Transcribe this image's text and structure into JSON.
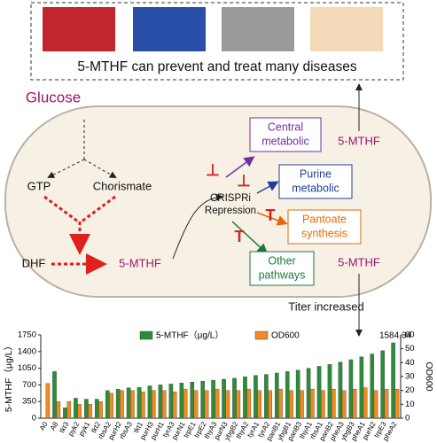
{
  "banner": {
    "caption": "5-MTHF can prevent and treat many diseases"
  },
  "pathway": {
    "glucose": "Glucose",
    "gtp": "GTP",
    "chorismate": "Chorismate",
    "dhf": "DHF",
    "product": "5-MTHF",
    "crispri": [
      "CRISPRi",
      "Repression"
    ],
    "targets": [
      [
        "Central",
        "metabolic"
      ],
      [
        "Purine",
        "metabolic"
      ],
      [
        "Pantoate",
        "synthesis"
      ],
      [
        "Other",
        "pathways"
      ]
    ],
    "export_top": "5-MTHF",
    "export_bottom": "5-MTHF",
    "result": "Titer increased"
  },
  "chart_data": {
    "type": "bar",
    "y_label": "5-MTHF（μg/L）",
    "y2_label": "OD600",
    "categories": [
      "A0",
      "A8",
      "tkt3",
      "pyk2",
      "pyk1",
      "tkt2",
      "rbsA2",
      "purH2",
      "rbsA3",
      "tkt1",
      "purH3",
      "purH1",
      "tyrA3",
      "purN1",
      "trpE1",
      "trpE2",
      "thyA3",
      "purN3",
      "ybgB2",
      "thyA2",
      "tyrA1",
      "tyrA2",
      "panB1",
      "ybgB1",
      "panB3",
      "thyA1",
      "rbsA1",
      "panB2",
      "pheA3",
      "ybgB3",
      "pheA1",
      "purN2",
      "trpE3",
      "pheA2"
    ],
    "series": [
      {
        "name": "5-MTHF（μg/L）",
        "color": "#2e8b3a",
        "axis": "y",
        "values": [
          0,
          980,
          220,
          420,
          400,
          400,
          580,
          610,
          640,
          650,
          680,
          700,
          720,
          740,
          760,
          780,
          800,
          820,
          840,
          870,
          900,
          920,
          950,
          980,
          1010,
          1050,
          1090,
          1130,
          1180,
          1230,
          1290,
          1350,
          1420,
          1584.34
        ]
      },
      {
        "name": "OD600",
        "color": "#f08a24",
        "axis": "y2",
        "values": [
          25,
          12,
          12,
          10,
          10,
          12,
          18,
          20,
          20,
          19,
          20,
          20,
          19,
          21,
          20,
          20,
          21,
          20,
          20,
          21,
          20,
          20,
          21,
          20,
          20,
          21,
          20,
          21,
          20,
          21,
          22,
          20,
          21,
          21
        ]
      }
    ],
    "ylim": [
      0,
      1750
    ],
    "yticks": [
      0,
      350,
      700,
      1050,
      1400,
      1750
    ],
    "y2lim": [
      0,
      60
    ],
    "y2ticks": [
      0,
      10,
      20,
      30,
      40,
      50,
      60
    ]
  }
}
